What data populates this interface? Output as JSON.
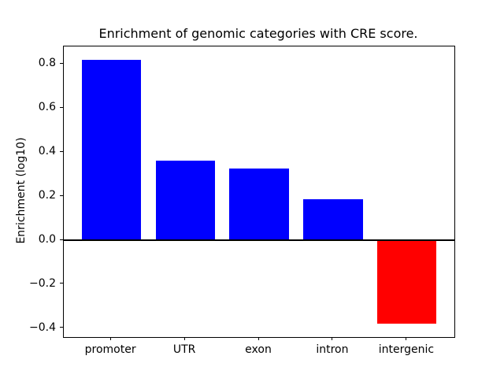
{
  "chart_data": {
    "type": "bar",
    "title": "Enrichment of genomic categories with CRE score.",
    "xlabel": "",
    "ylabel": "Enrichment (log10)",
    "categories": [
      "promoter",
      "UTR",
      "exon",
      "intron",
      "intergenic"
    ],
    "values": [
      0.82,
      0.36,
      0.325,
      0.185,
      -0.38
    ],
    "bar_colors": [
      "#0000ff",
      "#0000ff",
      "#0000ff",
      "#0000ff",
      "#ff0000"
    ],
    "positive_color": "#0000ff",
    "negative_color": "#ff0000",
    "bar_width": 0.8,
    "xlim": [
      -0.64,
      4.64
    ],
    "ylim": [
      -0.44,
      0.88
    ],
    "yticks": [
      0.8,
      0.6,
      0.4,
      0.2,
      0.0,
      -0.2,
      -0.4
    ],
    "ytick_labels": [
      "0.8",
      "0.6",
      "0.4",
      "0.2",
      "0.0",
      "−0.2",
      "−0.4"
    ],
    "grid": false,
    "legend": null,
    "zero_line": true,
    "frame_color": "#000000",
    "background_color": "#ffffff"
  }
}
